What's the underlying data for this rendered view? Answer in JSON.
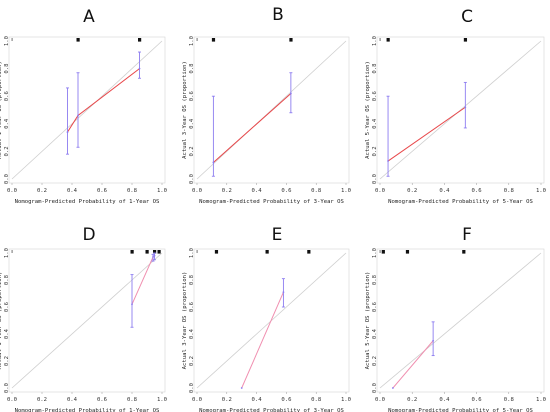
{
  "chart_data": [
    {
      "type": "line",
      "panel": "A",
      "xlabel": "Nomogram-Predicted Probability of 1-Year OS",
      "ylabel": "Actual 1-Year OS (proportion)",
      "xlim": [
        0,
        1
      ],
      "ylim": [
        0,
        1
      ],
      "xticks": [
        "0.0",
        "0.2",
        "0.4",
        "0.6",
        "0.8",
        "1.0"
      ],
      "yticks": [
        "0.0",
        "0.2",
        "0.4",
        "0.6",
        "0.8",
        "1.0"
      ],
      "reference_line": true,
      "rug": [
        0.0,
        0.44,
        0.85
      ],
      "calibration_color": "#e8474a",
      "errorbar_color": "#8c7cf0",
      "points": [
        {
          "x": 0.37,
          "y": 0.34,
          "lo": 0.18,
          "hi": 0.66
        },
        {
          "x": 0.44,
          "y": 0.46,
          "lo": 0.23,
          "hi": 0.77
        },
        {
          "x": 0.85,
          "y": 0.8,
          "lo": 0.73,
          "hi": 0.92
        }
      ]
    },
    {
      "type": "line",
      "panel": "B",
      "xlabel": "Nomogram-Predicted Probability of 3-Year OS",
      "ylabel": "Actual 3-Year OS (proportion)",
      "xlim": [
        0,
        1
      ],
      "ylim": [
        0,
        1
      ],
      "xticks": [
        "0.0",
        "0.2",
        "0.4",
        "0.6",
        "0.8",
        "1.0"
      ],
      "yticks": [
        "0.0",
        "0.2",
        "0.4",
        "0.6",
        "0.8",
        "1.0"
      ],
      "reference_line": true,
      "rug": [
        0.0,
        0.11,
        0.63
      ],
      "calibration_color": "#e8474a",
      "errorbar_color": "#8c7cf0",
      "points": [
        {
          "x": 0.11,
          "y": 0.12,
          "lo": 0.02,
          "hi": 0.6
        },
        {
          "x": 0.63,
          "y": 0.62,
          "lo": 0.48,
          "hi": 0.77
        }
      ]
    },
    {
      "type": "line",
      "panel": "C",
      "xlabel": "Nomogram-Predicted Probability of 5-Year OS",
      "ylabel": "Actual 5-Year OS (proportion)",
      "xlim": [
        0,
        1
      ],
      "ylim": [
        0,
        1
      ],
      "xticks": [
        "0.0",
        "0.2",
        "0.4",
        "0.6",
        "0.8",
        "1.0"
      ],
      "yticks": [
        "0.0",
        "0.2",
        "0.4",
        "0.6",
        "0.8",
        "1.0"
      ],
      "reference_line": true,
      "rug": [
        0.0,
        0.05,
        0.53
      ],
      "calibration_color": "#e8474a",
      "errorbar_color": "#8c7cf0",
      "points": [
        {
          "x": 0.05,
          "y": 0.13,
          "lo": 0.02,
          "hi": 0.6
        },
        {
          "x": 0.53,
          "y": 0.52,
          "lo": 0.37,
          "hi": 0.7
        }
      ]
    },
    {
      "type": "line",
      "panel": "D",
      "xlabel": "Nomogram-Predicted Probability of 1-Year OS",
      "ylabel": "Actual 1-Year OS (proportion)",
      "xlim": [
        0,
        1
      ],
      "ylim": [
        0,
        1
      ],
      "xticks": [
        "0.0",
        "0.2",
        "0.4",
        "0.6",
        "0.8",
        "1.0"
      ],
      "yticks": [
        "0.0",
        "0.2",
        "0.4",
        "0.6",
        "0.8",
        "1.0"
      ],
      "reference_line": true,
      "rug": [
        0.0,
        0.8,
        0.9,
        0.95,
        0.98
      ],
      "calibration_color": "#f08fb0",
      "errorbar_color": "#8c7cf0",
      "points": [
        {
          "x": 0.8,
          "y": 0.62,
          "lo": 0.45,
          "hi": 0.84
        },
        {
          "x": 0.94,
          "y": 0.97,
          "lo": 0.94,
          "hi": 0.99
        },
        {
          "x": 0.95,
          "y": 0.98,
          "lo": 0.95,
          "hi": 1.0
        }
      ]
    },
    {
      "type": "line",
      "panel": "E",
      "xlabel": "Nomogram-Predicted Probability of 3-Year OS",
      "ylabel": "Actual 3-Year OS (proportion)",
      "xlim": [
        0,
        1
      ],
      "ylim": [
        0,
        1
      ],
      "xticks": [
        "0.0",
        "0.2",
        "0.4",
        "0.6",
        "0.8",
        "1.0"
      ],
      "yticks": [
        "0.0",
        "0.2",
        "0.4",
        "0.6",
        "0.8",
        "1.0"
      ],
      "reference_line": true,
      "rug": [
        0.0,
        0.13,
        0.47,
        0.75
      ],
      "calibration_color": "#f08fb0",
      "errorbar_color": "#8c7cf0",
      "points": [
        {
          "x": 0.3,
          "y": 0.0,
          "lo": 0.0,
          "hi": 0.0
        },
        {
          "x": 0.58,
          "y": 0.71,
          "lo": 0.6,
          "hi": 0.81
        }
      ]
    },
    {
      "type": "line",
      "panel": "F",
      "xlabel": "Nomogram-Predicted Probability of 5-Year OS",
      "ylabel": "Actual 5-Year OS (proportion)",
      "xlim": [
        0,
        1
      ],
      "ylim": [
        0,
        1
      ],
      "xticks": [
        "0.0",
        "0.2",
        "0.4",
        "0.6",
        "0.8",
        "1.0"
      ],
      "yticks": [
        "0.0",
        "0.2",
        "0.4",
        "0.6",
        "0.8",
        "1.0"
      ],
      "reference_line": true,
      "rug": [
        0.0,
        0.02,
        0.17,
        0.52
      ],
      "calibration_color": "#f08fb0",
      "errorbar_color": "#8c7cf0",
      "points": [
        {
          "x": 0.08,
          "y": 0.0,
          "lo": 0.0,
          "hi": 0.0
        },
        {
          "x": 0.33,
          "y": 0.35,
          "lo": 0.24,
          "hi": 0.49
        }
      ]
    }
  ]
}
